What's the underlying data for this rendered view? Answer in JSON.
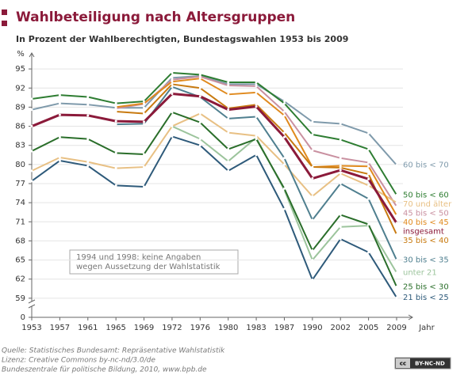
{
  "chart_data": {
    "type": "line",
    "title": "Wahlbeteiligung nach Altersgruppen",
    "subtitle": "In Prozent der Wahlberechtigten, Bundestagswahlen 1953 bis 2009",
    "y_unit": "%",
    "x_label": "Jahr",
    "annotation": [
      "1994 und 1998: keine Angaben",
      "wegen Aussetzung der Wahlstatistik"
    ],
    "footer": [
      "Quelle: Statistisches Bundesamt: Repräsentative Wahlstatistik",
      "Lizenz: Creative Commons by-nc-nd/3.0/de",
      "Bundeszentrale für politische Bildung, 2010, www.bpb.de"
    ],
    "license_badge": [
      "cc",
      "BY-NC-ND"
    ],
    "categories": [
      "1953",
      "1957",
      "1961",
      "1965",
      "1969",
      "1972",
      "1976",
      "1980",
      "1983",
      "1987",
      "1990",
      "2002",
      "2005",
      "2009"
    ],
    "ylim": [
      56,
      97.5
    ],
    "axis_break": true,
    "yticks": [
      0,
      59,
      62,
      65,
      68,
      71,
      74,
      77,
      80,
      83,
      86,
      89,
      92,
      95
    ],
    "grid": true,
    "series": [
      {
        "name": "60 bis < 70",
        "color": "#7f9aab",
        "values": [
          88.6,
          89.6,
          89.4,
          88.9,
          88.9,
          93.6,
          93.9,
          92.6,
          92.6,
          89.9,
          86.7,
          86.4,
          84.9,
          79.9
        ]
      },
      {
        "name": "50 bis < 60",
        "color": "#2e7d32",
        "values": [
          90.3,
          90.9,
          90.6,
          89.6,
          89.9,
          94.4,
          94.1,
          92.9,
          92.9,
          89.6,
          84.7,
          83.9,
          82.4,
          75.2
        ]
      },
      {
        "name": "45 bis < 50",
        "color": "#c990a0",
        "values": [
          null,
          null,
          null,
          88.8,
          89.5,
          93.3,
          93.8,
          92.4,
          92.3,
          88.3,
          82.2,
          81.0,
          80.3,
          73.4
        ]
      },
      {
        "name": "70 und älter",
        "color": "#e8c084",
        "values": [
          79.0,
          81.1,
          80.4,
          79.4,
          79.6,
          86.0,
          88.0,
          85.0,
          84.5,
          80.0,
          75.0,
          78.6,
          76.7,
          74.0
        ]
      },
      {
        "name": "40 bis < 45",
        "color": "#e08a1e",
        "values": [
          null,
          null,
          null,
          89.0,
          89.6,
          93.0,
          93.5,
          91.0,
          91.3,
          87.7,
          79.6,
          79.8,
          79.7,
          72.0
        ]
      },
      {
        "name": "35 bis < 40",
        "color": "#c87a10",
        "values": [
          null,
          null,
          null,
          88.3,
          88.0,
          92.6,
          92.0,
          88.8,
          89.4,
          85.0,
          79.6,
          79.5,
          78.5,
          69.0
        ]
      },
      {
        "name": "30 bis < 35",
        "color": "#4f7f8f",
        "values": [
          null,
          null,
          null,
          86.3,
          86.4,
          92.2,
          90.6,
          87.2,
          87.5,
          81.0,
          71.3,
          77.0,
          74.6,
          65.0
        ]
      },
      {
        "name": "unter 21",
        "color": "#9cc49c",
        "values": [
          null,
          null,
          null,
          null,
          null,
          86.0,
          84.0,
          80.5,
          84.2,
          76.0,
          65.0,
          70.2,
          70.4,
          63.0
        ]
      },
      {
        "name": "25 bis < 30",
        "color": "#2a6e2a",
        "values": [
          82.1,
          84.3,
          84.0,
          81.8,
          81.6,
          88.2,
          86.6,
          82.4,
          84.0,
          76.2,
          66.5,
          72.1,
          70.6,
          60.8
        ]
      },
      {
        "name": "21 bis < 25",
        "color": "#2e5a7a",
        "values": [
          77.4,
          80.6,
          79.8,
          76.7,
          76.5,
          84.4,
          83.0,
          79.0,
          81.5,
          73.0,
          61.9,
          68.3,
          66.2,
          59.1
        ]
      },
      {
        "name": "insgesamt",
        "color": "#8b1a3a",
        "width": 3,
        "values": [
          86.0,
          87.8,
          87.7,
          86.8,
          86.7,
          91.1,
          90.7,
          88.6,
          89.1,
          84.3,
          77.8,
          79.1,
          77.7,
          70.8
        ]
      }
    ]
  }
}
